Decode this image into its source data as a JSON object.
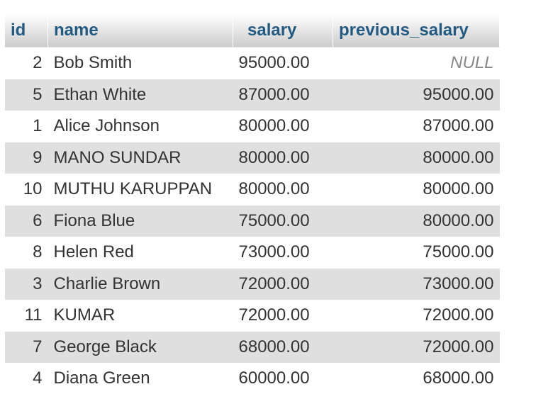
{
  "table": {
    "columns": [
      "id",
      "name",
      "salary",
      "previous_salary"
    ],
    "rows": [
      {
        "id": "2",
        "name": "Bob Smith",
        "salary": "95000.00",
        "previous_salary": "NULL"
      },
      {
        "id": "5",
        "name": "Ethan White",
        "salary": "87000.00",
        "previous_salary": "95000.00"
      },
      {
        "id": "1",
        "name": "Alice Johnson",
        "salary": "80000.00",
        "previous_salary": "87000.00"
      },
      {
        "id": "9",
        "name": "MANO SUNDAR",
        "salary": "80000.00",
        "previous_salary": "80000.00"
      },
      {
        "id": "10",
        "name": "MUTHU KARUPPAN",
        "salary": "80000.00",
        "previous_salary": "80000.00"
      },
      {
        "id": "6",
        "name": "Fiona Blue",
        "salary": "75000.00",
        "previous_salary": "80000.00"
      },
      {
        "id": "8",
        "name": "Helen Red",
        "salary": "73000.00",
        "previous_salary": "75000.00"
      },
      {
        "id": "3",
        "name": "Charlie Brown",
        "salary": "72000.00",
        "previous_salary": "73000.00"
      },
      {
        "id": "11",
        "name": "KUMAR",
        "salary": "72000.00",
        "previous_salary": "72000.00"
      },
      {
        "id": "7",
        "name": "George Black",
        "salary": "68000.00",
        "previous_salary": "72000.00"
      },
      {
        "id": "4",
        "name": "Diana Green",
        "salary": "60000.00",
        "previous_salary": "68000.00"
      }
    ]
  },
  "colors": {
    "header_text": "#235a81",
    "row_even_bg": "#dfdfdf",
    "row_odd_bg": "#ffffff",
    "null_text": "#888888"
  }
}
